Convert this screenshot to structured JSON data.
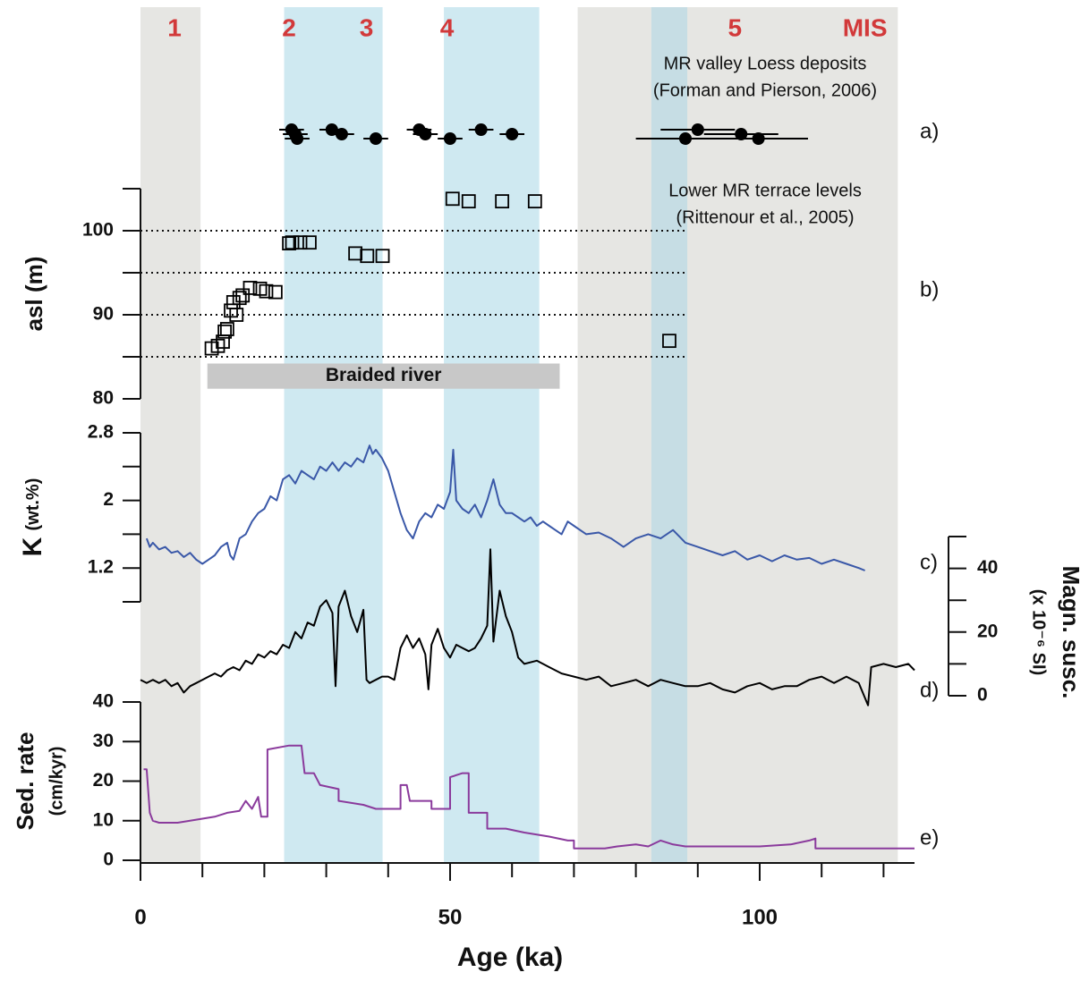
{
  "chart_data": {
    "type": "stacked-panels",
    "x_label": "Age (ka)",
    "xlim": [
      0,
      125
    ],
    "xticks": [
      0,
      50,
      100
    ],
    "xminor": [
      10,
      20,
      30,
      40,
      60,
      70,
      80,
      90,
      110,
      120
    ],
    "bands": [
      {
        "start": 0,
        "end": 9.7,
        "color": "#e6e6e3"
      },
      {
        "start": 23.2,
        "end": 39.1,
        "color": "#cfe9f1"
      },
      {
        "start": 49,
        "end": 64.4,
        "color": "#cfe9f1"
      },
      {
        "start": 70.6,
        "end": 122.3,
        "color": "#e6e6e3"
      },
      {
        "start": 82.5,
        "end": 88.3,
        "color": "#c6dde4"
      }
    ],
    "mis_labels": [
      {
        "text": "1",
        "x": 5.5
      },
      {
        "text": "2",
        "x": 24
      },
      {
        "text": "3",
        "x": 36.5
      },
      {
        "text": "4",
        "x": 49.5
      },
      {
        "text": "5",
        "x": 96
      },
      {
        "text": "MIS",
        "x": 117
      }
    ],
    "panels": [
      {
        "type": "errorbar",
        "label": "a)",
        "annotation": [
          "MR valley Loess deposits",
          "(Forman and Pierson, 2006)"
        ],
        "x": [
          24.4,
          25,
          25.3,
          30.9,
          32.5,
          38,
          45,
          46,
          50,
          55,
          60,
          88,
          90,
          97,
          99.8
        ],
        "xerr": [
          2,
          2,
          2,
          2,
          2,
          2,
          2,
          2,
          2,
          2,
          2,
          8,
          6,
          6,
          8
        ],
        "color": "#000000"
      },
      {
        "type": "scatter",
        "label": "b)",
        "y_label": [
          "asl (m)"
        ],
        "annotation": [
          "Lower MR terrace levels",
          "(Rittenour et al., 2005)"
        ],
        "ylim": [
          80,
          105
        ],
        "yticks": [
          80,
          90,
          100
        ],
        "yminor": [
          85,
          95,
          105
        ],
        "ref_lines": [
          85,
          90,
          95,
          100
        ],
        "ref_line_end": 88,
        "braided_river": {
          "label": "Braided river",
          "start": 10.8,
          "end": 67.7,
          "ylim": [
            81.2,
            84.2
          ],
          "color": "#c8c8c8"
        },
        "x": [
          11.5,
          12.5,
          13.3,
          13.6,
          14,
          14.6,
          15,
          15.5,
          16,
          16.5,
          17.7,
          19.3,
          20.3,
          21.8,
          24,
          24.5,
          25.8,
          27.3,
          34.7,
          36.6,
          39.1,
          50.4,
          53,
          58.4,
          63.7,
          85.4
        ],
        "values": [
          86,
          86.3,
          86.8,
          88,
          88.3,
          90.5,
          91.5,
          90,
          92,
          92.3,
          93.2,
          93.1,
          92.8,
          92.7,
          98.5,
          98.6,
          98.6,
          98.6,
          97.3,
          97,
          97,
          103.8,
          103.5,
          103.5,
          103.5,
          86.9
        ],
        "color": "#000000"
      },
      {
        "type": "line",
        "label": "c)",
        "y_label": [
          "K",
          "(wt.%)"
        ],
        "axis_side": "left",
        "ylim": [
          0.8,
          2.8
        ],
        "yticks": [
          1.2,
          2,
          2.8
        ],
        "yminor": [
          0.8,
          1.6,
          2.4
        ],
        "color": "#3a58a8",
        "x": [
          1,
          1.5,
          2,
          3,
          4,
          5,
          6,
          7,
          8,
          9,
          10,
          11,
          12,
          13,
          14,
          14.5,
          15,
          16,
          17,
          18,
          19,
          20,
          21,
          22,
          23,
          24,
          25,
          26,
          27,
          28,
          29,
          30,
          31,
          32,
          33,
          34,
          35,
          36,
          37,
          37.5,
          38,
          39,
          40,
          41,
          42,
          43,
          44,
          45,
          46,
          47,
          48,
          49,
          50,
          50.5,
          51,
          52,
          53,
          54,
          55,
          56,
          57,
          58,
          59,
          60,
          61,
          62,
          63,
          64,
          65,
          66,
          67,
          68,
          69,
          70,
          72,
          74,
          76,
          78,
          80,
          82,
          84,
          86,
          88,
          90,
          92,
          94,
          96,
          98,
          100,
          102,
          104,
          106,
          108,
          110,
          112,
          114,
          116,
          117
        ],
        "values": [
          1.55,
          1.45,
          1.5,
          1.42,
          1.45,
          1.38,
          1.4,
          1.33,
          1.38,
          1.3,
          1.25,
          1.3,
          1.35,
          1.45,
          1.5,
          1.35,
          1.3,
          1.55,
          1.6,
          1.75,
          1.85,
          1.9,
          2.05,
          2.0,
          2.25,
          2.3,
          2.2,
          2.35,
          2.3,
          2.25,
          2.4,
          2.35,
          2.45,
          2.35,
          2.45,
          2.4,
          2.5,
          2.45,
          2.65,
          2.55,
          2.6,
          2.5,
          2.35,
          2.1,
          1.85,
          1.65,
          1.55,
          1.75,
          1.85,
          1.8,
          1.95,
          1.9,
          2.1,
          2.6,
          2.0,
          1.9,
          1.85,
          1.95,
          1.8,
          2.0,
          2.25,
          1.95,
          1.85,
          1.85,
          1.8,
          1.75,
          1.8,
          1.7,
          1.75,
          1.7,
          1.65,
          1.6,
          1.75,
          1.7,
          1.6,
          1.62,
          1.55,
          1.45,
          1.55,
          1.6,
          1.55,
          1.65,
          1.5,
          1.45,
          1.4,
          1.35,
          1.4,
          1.3,
          1.35,
          1.28,
          1.35,
          1.3,
          1.32,
          1.25,
          1.3,
          1.25,
          1.2,
          1.17
        ]
      },
      {
        "type": "line",
        "label": "d)",
        "y_label": [
          "Magn. susc.",
          "(x 10⁻⁶ SI)"
        ],
        "axis_side": "right",
        "ylim": [
          0,
          50
        ],
        "yticks": [
          0,
          20,
          40
        ],
        "yminor": [
          10,
          30,
          50
        ],
        "color": "#000000",
        "x": [
          0,
          1,
          2,
          3,
          4,
          5,
          6,
          7,
          8,
          9,
          10,
          11,
          12,
          13,
          14,
          15,
          16,
          17,
          18,
          19,
          20,
          21,
          22,
          23,
          24,
          25,
          26,
          27,
          28,
          29,
          30,
          31,
          31.5,
          32,
          33,
          34,
          35,
          36,
          36.5,
          37,
          38,
          39,
          40,
          41,
          42,
          43,
          44,
          45,
          46,
          46.5,
          47,
          48,
          49,
          50,
          51,
          52,
          53,
          54,
          55,
          56,
          56.5,
          57,
          58,
          59,
          60,
          61,
          62,
          64,
          66,
          68,
          70,
          72,
          74,
          76,
          78,
          80,
          82,
          84,
          86,
          88,
          90,
          92,
          94,
          96,
          98,
          100,
          102,
          104,
          106,
          108,
          110,
          112,
          114,
          116,
          117.5,
          118,
          120,
          122,
          124,
          125
        ],
        "values": [
          5,
          4,
          5,
          4,
          5,
          3,
          4,
          1,
          3,
          4,
          5,
          6,
          7,
          6,
          8,
          9,
          8,
          11,
          10,
          13,
          12,
          14,
          13,
          16,
          15,
          20,
          18,
          23,
          22,
          28,
          30,
          26,
          3,
          28,
          33,
          25,
          20,
          27,
          5,
          4,
          5,
          6,
          6,
          5,
          15,
          19,
          15,
          18,
          13,
          2,
          16,
          21,
          15,
          12,
          16,
          15,
          14,
          15,
          18,
          22,
          46,
          17,
          33,
          25,
          20,
          12,
          10,
          11,
          9,
          7,
          6,
          5,
          6,
          3,
          4,
          5,
          3,
          5,
          4,
          3,
          3,
          4,
          2,
          1,
          3,
          4,
          2,
          3,
          3,
          5,
          6,
          4,
          6,
          4,
          -3,
          9,
          10,
          9,
          10,
          8
        ]
      },
      {
        "type": "line",
        "label": "e)",
        "y_label": [
          "Sed. rate",
          "(cm/kyr)"
        ],
        "axis_side": "left",
        "ylim": [
          0,
          40
        ],
        "yticks": [
          0,
          10,
          20,
          30,
          40
        ],
        "yminor": [],
        "color": "#8a3a9c",
        "x": [
          0.5,
          1,
          1.5,
          2,
          3,
          6,
          8,
          10,
          12,
          14,
          16,
          17,
          18,
          19,
          19.5,
          20.5,
          20.5,
          24,
          26,
          26.5,
          28,
          29,
          32,
          32,
          36,
          38,
          42,
          42,
          43,
          43.5,
          47,
          47,
          50,
          50,
          52,
          53,
          53,
          56,
          56,
          59,
          62,
          66,
          69,
          70,
          70,
          75,
          77,
          80,
          82,
          84,
          86,
          88,
          100,
          105,
          108,
          109,
          109,
          115,
          125
        ],
        "values": [
          23,
          23,
          12,
          10,
          9.5,
          9.5,
          10,
          10.5,
          11,
          12,
          12.5,
          15,
          13,
          16,
          11,
          11,
          28,
          29,
          29,
          22,
          22,
          19,
          18,
          15,
          14,
          13,
          13,
          19,
          19,
          15,
          15,
          13,
          13,
          21,
          22,
          22,
          12,
          12,
          8,
          8,
          7,
          6,
          5,
          5,
          3,
          3,
          3.5,
          4,
          3.5,
          5,
          4,
          3.5,
          3.5,
          4,
          5,
          5.5,
          3,
          3,
          3
        ]
      }
    ]
  }
}
